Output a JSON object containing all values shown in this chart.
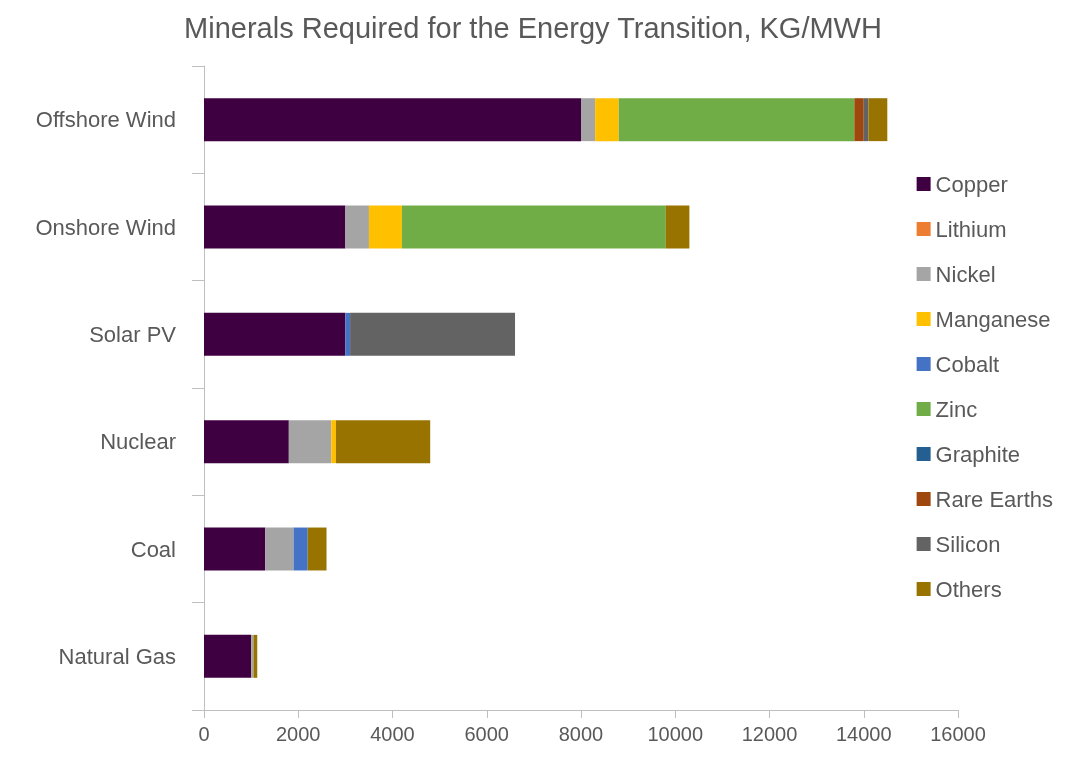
{
  "chart_data": {
    "type": "bar",
    "orientation": "horizontal",
    "stacked": true,
    "title": "Minerals Required for the Energy Transition, KG/MWH",
    "categories": [
      "Offshore Wind",
      "Onshore Wind",
      "Solar PV",
      "Nuclear",
      "Coal",
      "Natural Gas"
    ],
    "series": [
      {
        "name": "Copper",
        "color": "#3f0042",
        "values": [
          8000,
          3000,
          3000,
          1800,
          1300,
          1000
        ]
      },
      {
        "name": "Lithium",
        "color": "#ed7d31",
        "values": [
          0,
          0,
          0,
          0,
          0,
          0
        ]
      },
      {
        "name": "Nickel",
        "color": "#a5a5a5",
        "values": [
          300,
          500,
          0,
          900,
          600,
          50
        ]
      },
      {
        "name": "Manganese",
        "color": "#ffc000",
        "values": [
          500,
          700,
          0,
          100,
          0,
          0
        ]
      },
      {
        "name": "Cobalt",
        "color": "#4472c4",
        "values": [
          0,
          0,
          100,
          0,
          300,
          0
        ]
      },
      {
        "name": "Zinc",
        "color": "#70ad47",
        "values": [
          5000,
          5600,
          0,
          0,
          0,
          0
        ]
      },
      {
        "name": "Graphite",
        "color": "#255e91",
        "values": [
          0,
          0,
          0,
          0,
          0,
          0
        ]
      },
      {
        "name": "Rare Earths",
        "color": "#9e480e",
        "values": [
          200,
          0,
          0,
          0,
          0,
          0
        ]
      },
      {
        "name": "Silicon",
        "color": "#636363",
        "values": [
          100,
          0,
          3500,
          0,
          0,
          0
        ]
      },
      {
        "name": "Others",
        "color": "#997300",
        "values": [
          400,
          500,
          0,
          2000,
          400,
          80
        ]
      }
    ],
    "xlim": [
      0,
      16000
    ],
    "xticks": [
      0,
      2000,
      4000,
      6000,
      8000,
      10000,
      12000,
      14000,
      16000
    ],
    "grid": false,
    "legend": "right"
  }
}
